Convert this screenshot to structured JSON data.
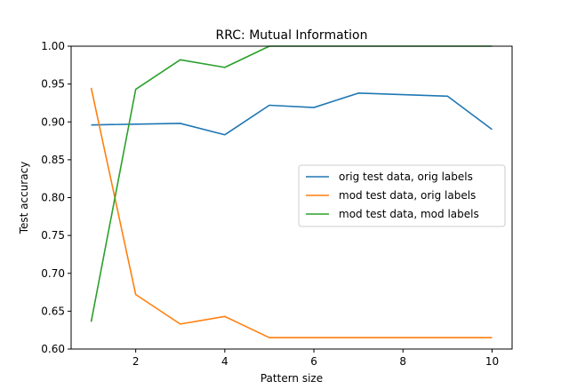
{
  "chart_data": {
    "type": "line",
    "title": "RRC: Mutual Information",
    "xlabel": "Pattern size",
    "ylabel": "Test accuracy",
    "x": [
      1,
      2,
      3,
      4,
      5,
      6,
      7,
      8,
      9,
      10
    ],
    "xlim": [
      0.55,
      10.45
    ],
    "ylim": [
      0.6,
      1.0
    ],
    "xticks": [
      2,
      4,
      6,
      8,
      10
    ],
    "xtick_labels": [
      "2",
      "4",
      "6",
      "8",
      "10"
    ],
    "yticks": [
      0.6,
      0.65,
      0.7,
      0.75,
      0.8,
      0.85,
      0.9,
      0.95,
      1.0
    ],
    "ytick_labels": [
      "0.60",
      "0.65",
      "0.70",
      "0.75",
      "0.80",
      "0.85",
      "0.90",
      "0.95",
      "1.00"
    ],
    "grid": false,
    "legend_position": "center-right",
    "series": [
      {
        "name": "orig test data, orig labels",
        "color": "#1f77b4",
        "values": [
          0.896,
          0.897,
          0.898,
          0.883,
          0.922,
          0.919,
          0.938,
          0.936,
          0.934,
          0.89
        ]
      },
      {
        "name": "mod test data, orig labels",
        "color": "#ff7f0e",
        "values": [
          0.945,
          0.672,
          0.633,
          0.643,
          0.615,
          0.615,
          0.615,
          0.615,
          0.615,
          0.615
        ]
      },
      {
        "name": "mod test data, mod labels",
        "color": "#2ca02c",
        "values": [
          0.636,
          0.943,
          0.982,
          0.972,
          1.0,
          1.0,
          1.0,
          1.0,
          1.0,
          1.0
        ]
      }
    ]
  }
}
